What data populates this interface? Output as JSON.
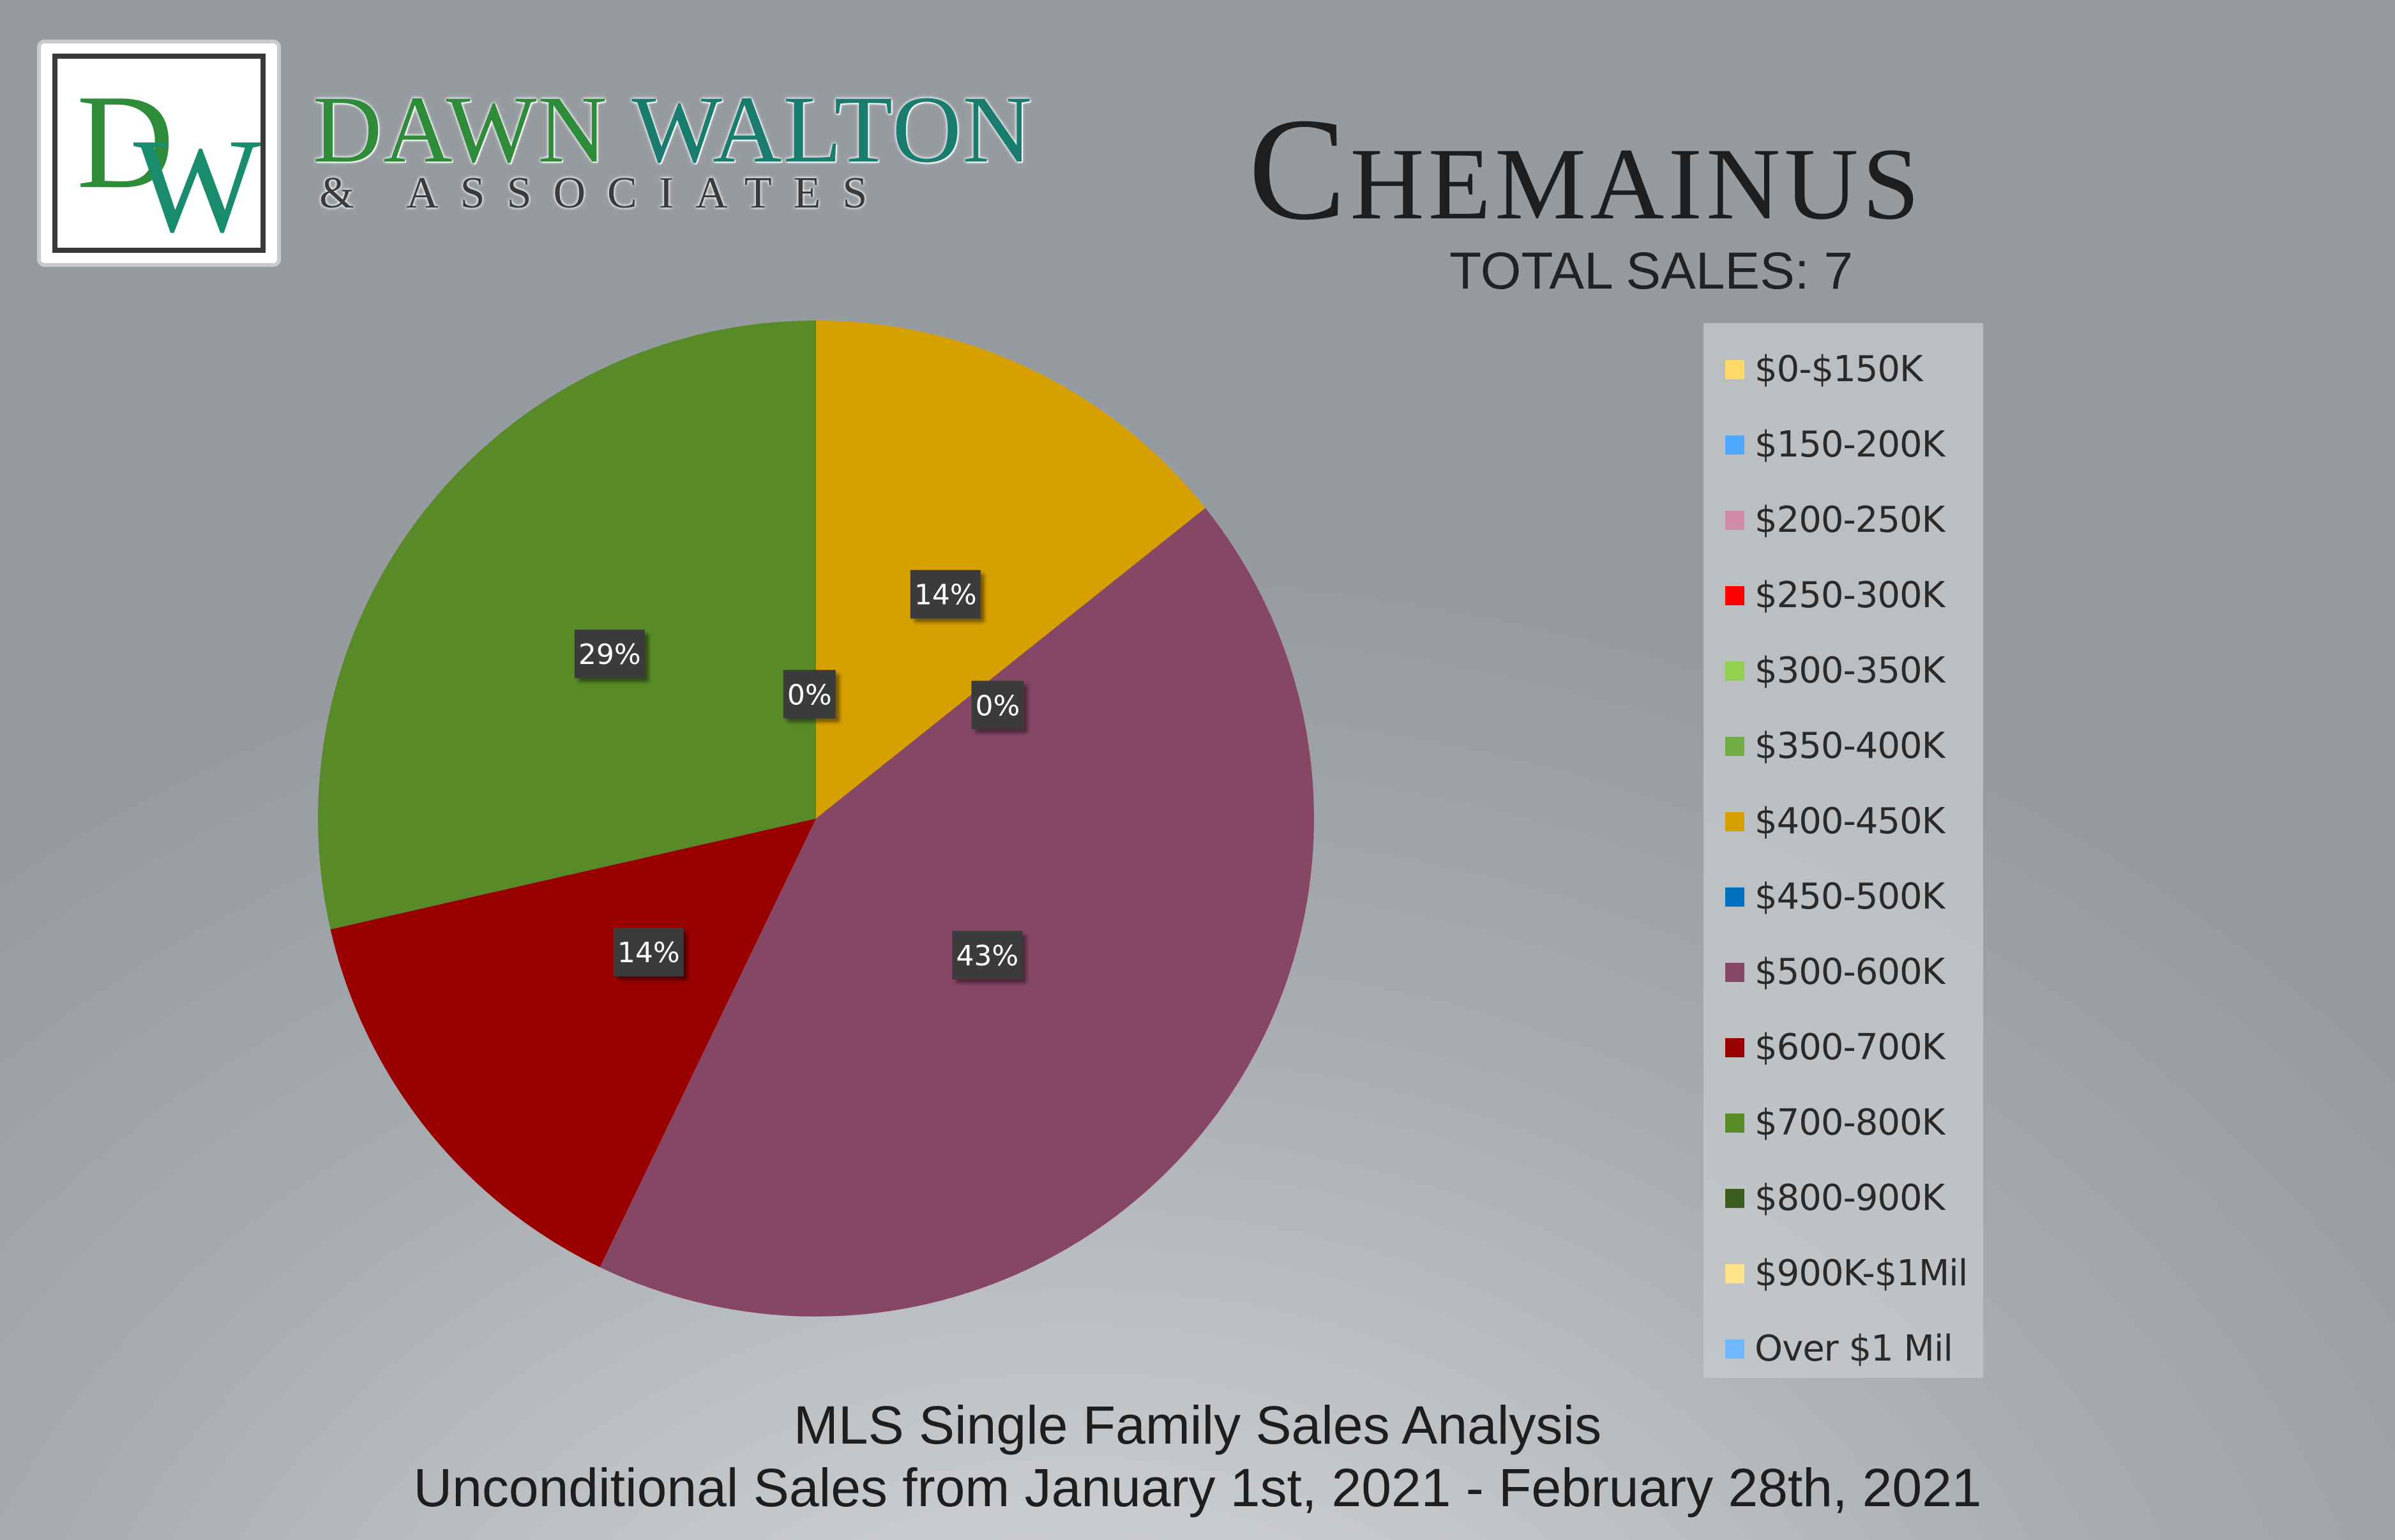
{
  "brand": {
    "logo_letters": "DW",
    "name_part1": "DAWN",
    "name_part2": "WALTON",
    "subtitle": "& ASSOCIATES"
  },
  "header": {
    "city": "Chemainus",
    "total_sales": "TOTAL SALES: 7"
  },
  "footer": {
    "line1": "MLS Single Family Sales Analysis",
    "line2": "Unconditional Sales from January 1st, 2021 - February 28th, 2021"
  },
  "chart_data": {
    "type": "pie",
    "title": "",
    "start_angle_deg": 0,
    "direction": "clockwise",
    "categories": [
      "$0-$150K",
      "$150-200K",
      "$200-250K",
      "$250-300K",
      "$300-350K",
      "$350-400K",
      "$400-450K",
      "$450-500K",
      "$500-600K",
      "$600-700K",
      "$700-800K",
      "$800-900K",
      "$900K-$1Mil",
      "Over $1 Mil"
    ],
    "values": [
      0,
      0,
      0,
      0,
      0,
      0,
      1,
      0,
      3,
      1,
      2,
      0,
      0,
      0
    ],
    "colors": [
      "#ffd966",
      "#4da6ff",
      "#d08ca8",
      "#ff0000",
      "#92d050",
      "#70ad47",
      "#d6a000",
      "#0070c0",
      "#864665",
      "#990000",
      "#588a28",
      "#3b5e1f",
      "#ffe38a",
      "#6fb7ff"
    ],
    "data_labels": [
      {
        "text": "0%",
        "category": "$0-$150K"
      },
      {
        "text": "14%",
        "category": "$400-450K"
      },
      {
        "text": "0%",
        "category": "$450-500K"
      },
      {
        "text": "43%",
        "category": "$500-600K"
      },
      {
        "text": "14%",
        "category": "$600-700K"
      },
      {
        "text": "29%",
        "category": "$700-800K"
      }
    ],
    "legend_position": "right"
  }
}
